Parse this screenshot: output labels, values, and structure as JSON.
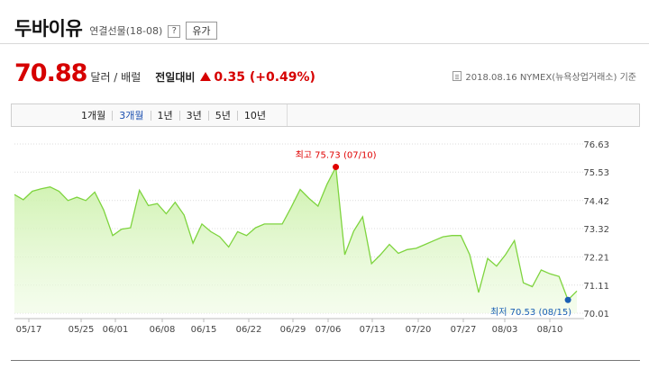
{
  "header": {
    "title": "두바이유",
    "subtitle": "연결선물(18-08)",
    "help_label": "?",
    "category_label": "유가"
  },
  "quote": {
    "price": "70.88",
    "unit": "달러 / 배럴",
    "compare_label": "전일대비",
    "change": "0.35 (+0.49%)",
    "source": "2018.08.16  NYMEX(뉴욕상업거래소) 기준"
  },
  "tabs": [
    {
      "label": "1개월",
      "active": false
    },
    {
      "label": "3개월",
      "active": true
    },
    {
      "label": "1년",
      "active": false
    },
    {
      "label": "3년",
      "active": false
    },
    {
      "label": "5년",
      "active": false
    },
    {
      "label": "10년",
      "active": false
    }
  ],
  "colors": {
    "price_red": "#d60000",
    "line_green": "#7ed43e",
    "area_green": "#c8f0a4",
    "high_marker": "#e00000",
    "low_marker": "#1a5fb4"
  },
  "chart_data": {
    "type": "area",
    "x_ticks": [
      "05/17",
      "05/25",
      "06/01",
      "06/08",
      "06/15",
      "06/22",
      "06/29",
      "07/06",
      "07/13",
      "07/20",
      "07/27",
      "08/03",
      "08/10"
    ],
    "y_ticks": [
      "76.63",
      "75.53",
      "74.42",
      "73.32",
      "72.21",
      "71.11",
      "70.01"
    ],
    "ylim": [
      70.01,
      76.63
    ],
    "values": [
      74.65,
      74.45,
      74.78,
      74.88,
      74.95,
      74.78,
      74.42,
      74.55,
      74.42,
      74.75,
      74.05,
      73.05,
      73.3,
      73.35,
      74.82,
      74.22,
      74.3,
      73.9,
      74.35,
      73.85,
      72.75,
      73.5,
      73.2,
      73.0,
      72.6,
      73.2,
      73.05,
      73.35,
      73.5,
      73.5,
      73.5,
      74.15,
      74.85,
      74.5,
      74.2,
      75.05,
      75.73,
      72.3,
      73.22,
      73.78,
      71.95,
      72.3,
      72.7,
      72.35,
      72.5,
      72.55,
      72.7,
      72.85,
      73.0,
      73.05,
      73.05,
      72.3,
      70.82,
      72.15,
      71.85,
      72.3,
      72.85,
      71.2,
      71.05,
      71.7,
      71.55,
      71.45,
      70.53,
      70.88
    ],
    "high": {
      "label": "최고",
      "value": "75.73",
      "date": "(07/10)",
      "index": 36
    },
    "low": {
      "label": "최저",
      "value": "70.53",
      "date": "(08/15)",
      "index": 62
    },
    "grid": "horizontal-dotted",
    "legend": "none"
  }
}
